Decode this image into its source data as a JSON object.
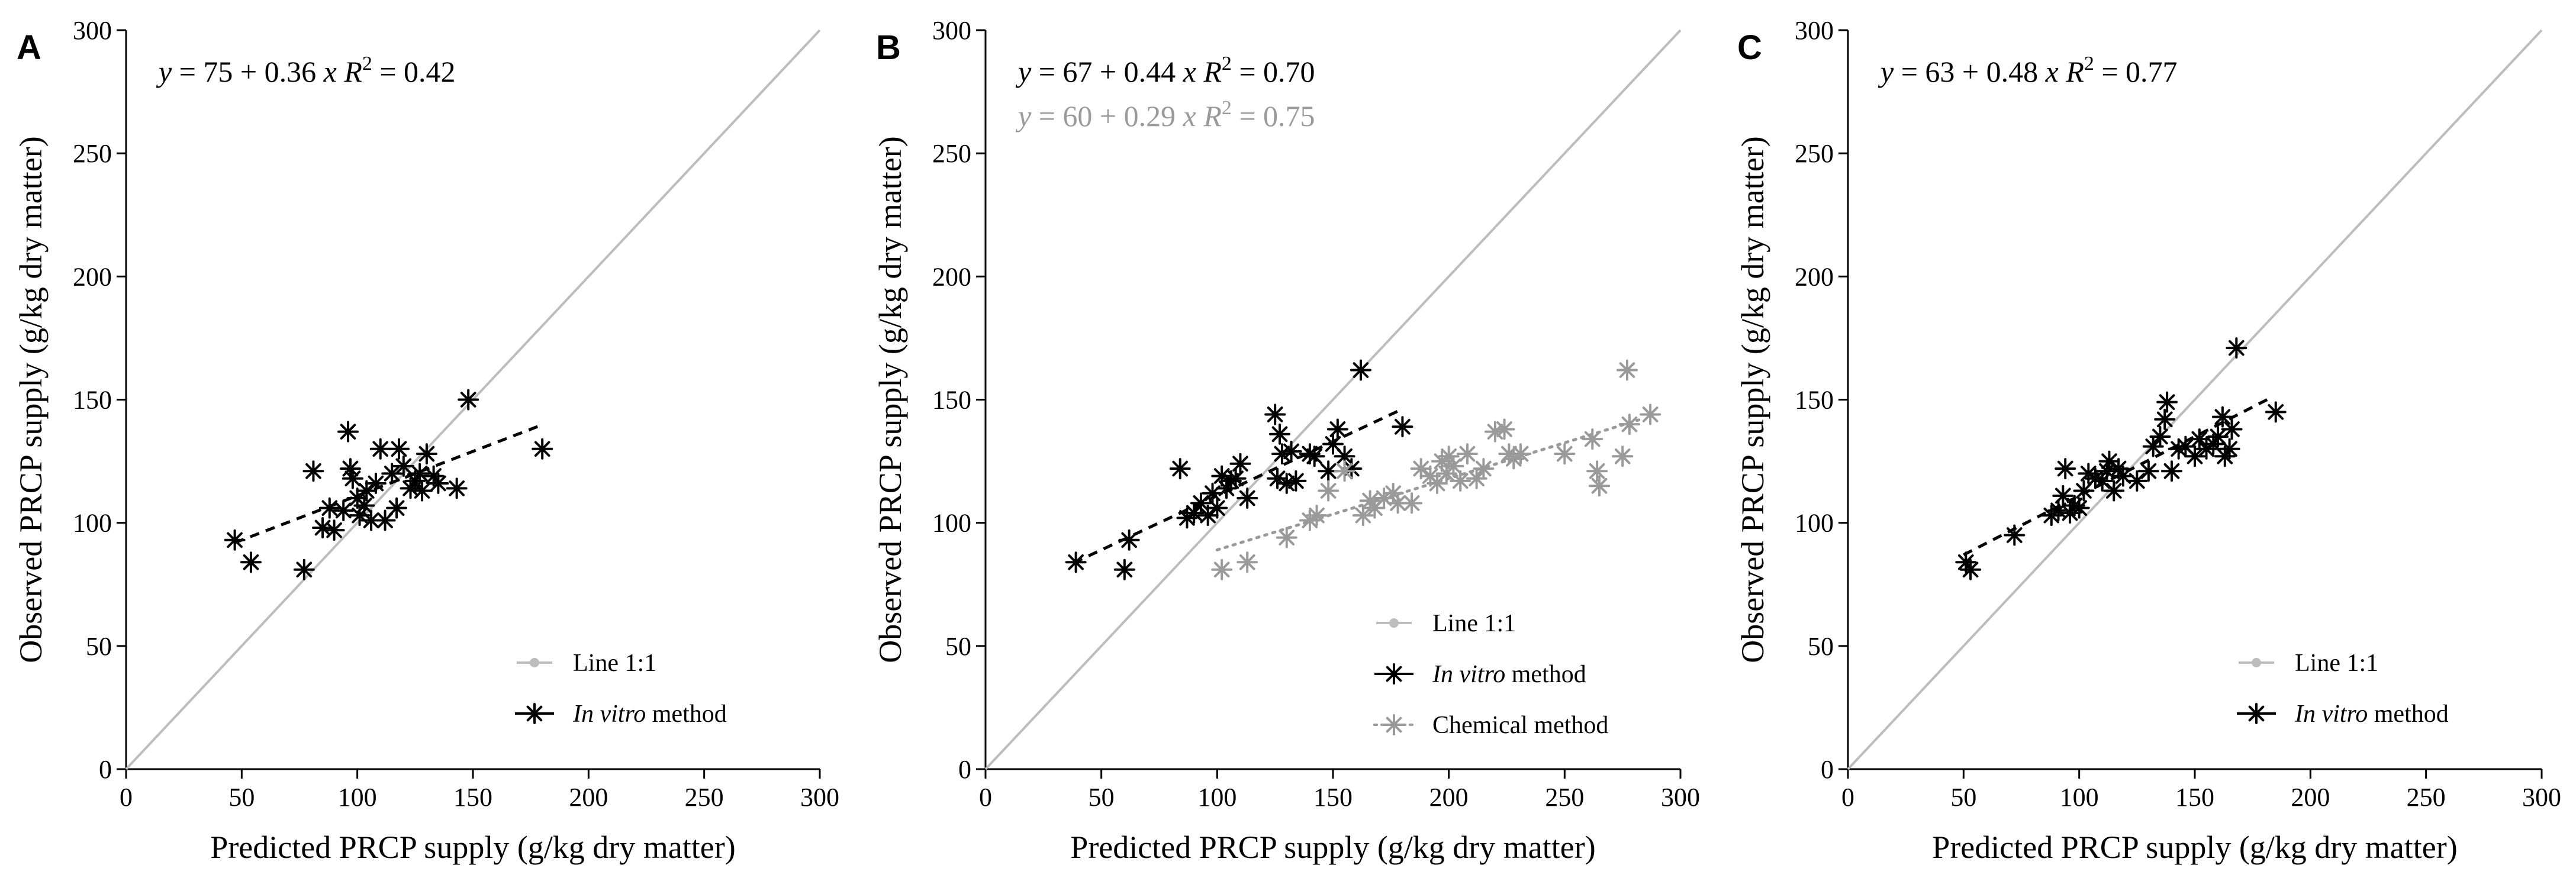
{
  "figure": {
    "colors": {
      "invitro": "#000000",
      "chemical": "#9a9a9a",
      "identity_line": "#bdbdbd",
      "axis": "#000000",
      "background": "#ffffff"
    }
  },
  "chart_data": [
    {
      "panel": "A",
      "type": "scatter",
      "xlabel": "Predicted PRCP supply (g/kg dry matter)",
      "ylabel": "Observed PRCP supply (g/kg dry matter)",
      "xlim": [
        0,
        300
      ],
      "ylim": [
        0,
        300
      ],
      "xticks": [
        0,
        50,
        100,
        150,
        200,
        250,
        300
      ],
      "yticks": [
        0,
        50,
        100,
        150,
        200,
        250,
        300
      ],
      "grid": false,
      "legend_position": "bottom-right",
      "equations": [
        {
          "series": "invitro",
          "y": "y",
          "lhs": " = 75 + 0.36 ",
          "x": "x",
          "r": "R",
          "exp": "2",
          "rhs": " = 0.42"
        }
      ],
      "legend": [
        {
          "key": "identity",
          "label": "Line 1:1"
        },
        {
          "key": "invitro",
          "label_italic": "In vitro",
          "label_rest": " method"
        }
      ],
      "identity_line": [
        [
          0,
          0
        ],
        [
          300,
          300
        ]
      ],
      "series": [
        {
          "name": "In vitro method",
          "key": "invitro",
          "marker": "asterisk",
          "regression": {
            "intercept": 75,
            "slope": 0.36,
            "x_range": [
              47,
              180
            ],
            "style": "dashed"
          },
          "points": [
            [
              47,
              93
            ],
            [
              54,
              84
            ],
            [
              77,
              81
            ],
            [
              81,
              121
            ],
            [
              85,
              98
            ],
            [
              88,
              106
            ],
            [
              90,
              97
            ],
            [
              94,
              105
            ],
            [
              96,
              137
            ],
            [
              97,
              122
            ],
            [
              98,
              118
            ],
            [
              100,
              110
            ],
            [
              101,
              103
            ],
            [
              103,
              107
            ],
            [
              104,
              113
            ],
            [
              106,
              101
            ],
            [
              108,
              116
            ],
            [
              110,
              130
            ],
            [
              112,
              101
            ],
            [
              115,
              120
            ],
            [
              117,
              106
            ],
            [
              118,
              130
            ],
            [
              120,
              123
            ],
            [
              123,
              114
            ],
            [
              125,
              117
            ],
            [
              127,
              120
            ],
            [
              128,
              113
            ],
            [
              130,
              128
            ],
            [
              133,
              119
            ],
            [
              135,
              116
            ],
            [
              143,
              114
            ],
            [
              148,
              150
            ],
            [
              180,
              130
            ]
          ]
        }
      ]
    },
    {
      "panel": "B",
      "type": "scatter",
      "xlabel": "Predicted PRCP supply (g/kg dry matter)",
      "ylabel": "Observed PRCP supply (g/kg dry matter)",
      "xlim": [
        0,
        300
      ],
      "ylim": [
        0,
        300
      ],
      "xticks": [
        0,
        50,
        100,
        150,
        200,
        250,
        300
      ],
      "yticks": [
        0,
        50,
        100,
        150,
        200,
        250,
        300
      ],
      "grid": false,
      "legend_position": "bottom-right",
      "equations": [
        {
          "series": "invitro",
          "y": "y",
          "lhs": " = 67 + 0.44 ",
          "x": "x",
          "r": "R",
          "exp": "2",
          "rhs": " = 0.70"
        },
        {
          "series": "chemical",
          "y": "y",
          "lhs": " = 60 + 0.29 ",
          "x": "x",
          "r": "R",
          "exp": "2",
          "rhs": " = 0.75"
        }
      ],
      "legend": [
        {
          "key": "identity",
          "label": "Line 1:1"
        },
        {
          "key": "invitro",
          "label_italic": "In vitro",
          "label_rest": " method"
        },
        {
          "key": "chemical",
          "label": "Chemical method"
        }
      ],
      "identity_line": [
        [
          0,
          0
        ],
        [
          300,
          300
        ]
      ],
      "series": [
        {
          "name": "In vitro method",
          "key": "invitro",
          "marker": "asterisk",
          "regression": {
            "intercept": 67,
            "slope": 0.44,
            "x_range": [
              38,
              180
            ],
            "style": "dashed"
          },
          "points": [
            [
              39,
              84
            ],
            [
              60,
              81
            ],
            [
              62,
              93
            ],
            [
              84,
              122
            ],
            [
              87,
              102
            ],
            [
              90,
              104
            ],
            [
              93,
              108
            ],
            [
              96,
              103
            ],
            [
              98,
              112
            ],
            [
              100,
              106
            ],
            [
              102,
              119
            ],
            [
              104,
              114
            ],
            [
              106,
              117
            ],
            [
              108,
              118
            ],
            [
              110,
              124
            ],
            [
              113,
              110
            ],
            [
              125,
              144
            ],
            [
              126,
              118
            ],
            [
              127,
              136
            ],
            [
              128,
              128
            ],
            [
              130,
              116
            ],
            [
              132,
              129
            ],
            [
              134,
              117
            ],
            [
              140,
              128
            ],
            [
              142,
              127
            ],
            [
              148,
              121
            ],
            [
              150,
              132
            ],
            [
              152,
              138
            ],
            [
              155,
              127
            ],
            [
              158,
              122
            ],
            [
              162,
              162
            ],
            [
              180,
              139
            ]
          ]
        },
        {
          "name": "Chemical method",
          "key": "chemical",
          "marker": "asterisk",
          "regression": {
            "intercept": 60,
            "slope": 0.29,
            "x_range": [
              100,
              282
            ],
            "style": "dotted"
          },
          "points": [
            [
              102,
              81
            ],
            [
              113,
              84
            ],
            [
              130,
              94
            ],
            [
              140,
              101
            ],
            [
              143,
              103
            ],
            [
              148,
              113
            ],
            [
              155,
              121
            ],
            [
              163,
              103
            ],
            [
              166,
              109
            ],
            [
              168,
              106
            ],
            [
              172,
              110
            ],
            [
              176,
              112
            ],
            [
              178,
              108
            ],
            [
              184,
              108
            ],
            [
              188,
              122
            ],
            [
              192,
              119
            ],
            [
              195,
              116
            ],
            [
              197,
              125
            ],
            [
              199,
              120
            ],
            [
              200,
              127
            ],
            [
              202,
              123
            ],
            [
              205,
              117
            ],
            [
              208,
              128
            ],
            [
              212,
              118
            ],
            [
              215,
              122
            ],
            [
              220,
              137
            ],
            [
              224,
              138
            ],
            [
              226,
              128
            ],
            [
              228,
              126
            ],
            [
              231,
              128
            ],
            [
              250,
              128
            ],
            [
              262,
              134
            ],
            [
              264,
              121
            ],
            [
              265,
              115
            ],
            [
              275,
              127
            ],
            [
              277,
              162
            ],
            [
              278,
              140
            ],
            [
              287,
              144
            ]
          ]
        }
      ]
    },
    {
      "panel": "C",
      "type": "scatter",
      "xlabel": "Predicted PRCP supply (g/kg dry matter)",
      "ylabel": "Observed PRCP supply (g/kg dry matter)",
      "xlim": [
        0,
        300
      ],
      "ylim": [
        0,
        300
      ],
      "xticks": [
        0,
        50,
        100,
        150,
        200,
        250,
        300
      ],
      "yticks": [
        0,
        50,
        100,
        150,
        200,
        250,
        300
      ],
      "grid": false,
      "legend_position": "bottom-right",
      "equations": [
        {
          "series": "invitro",
          "y": "y",
          "lhs": " = 63 + 0.48 ",
          "x": "x",
          "r": "R",
          "exp": "2",
          "rhs": " = 0.77"
        }
      ],
      "legend": [
        {
          "key": "identity",
          "label": "Line 1:1"
        },
        {
          "key": "invitro",
          "label_italic": "In vitro",
          "label_rest": " method"
        }
      ],
      "identity_line": [
        [
          0,
          0
        ],
        [
          300,
          300
        ]
      ],
      "series": [
        {
          "name": "In vitro method",
          "key": "invitro",
          "marker": "asterisk",
          "regression": {
            "intercept": 63,
            "slope": 0.48,
            "x_range": [
              50,
              183
            ],
            "style": "dashed"
          },
          "points": [
            [
              51,
              84
            ],
            [
              53,
              81
            ],
            [
              72,
              95
            ],
            [
              88,
              103
            ],
            [
              91,
              105
            ],
            [
              93,
              111
            ],
            [
              94,
              122
            ],
            [
              96,
              104
            ],
            [
              98,
              107
            ],
            [
              100,
              106
            ],
            [
              102,
              113
            ],
            [
              104,
              120
            ],
            [
              107,
              118
            ],
            [
              110,
              117
            ],
            [
              112,
              121
            ],
            [
              113,
              125
            ],
            [
              115,
              113
            ],
            [
              117,
              122
            ],
            [
              119,
              119
            ],
            [
              125,
              117
            ],
            [
              130,
              121
            ],
            [
              132,
              131
            ],
            [
              135,
              135
            ],
            [
              137,
              142
            ],
            [
              138,
              149
            ],
            [
              140,
              121
            ],
            [
              143,
              130
            ],
            [
              146,
              131
            ],
            [
              150,
              127
            ],
            [
              152,
              134
            ],
            [
              155,
              130
            ],
            [
              158,
              132
            ],
            [
              160,
              135
            ],
            [
              162,
              143
            ],
            [
              163,
              127
            ],
            [
              165,
              130
            ],
            [
              166,
              138
            ],
            [
              168,
              171
            ],
            [
              185,
              145
            ]
          ]
        }
      ]
    }
  ]
}
